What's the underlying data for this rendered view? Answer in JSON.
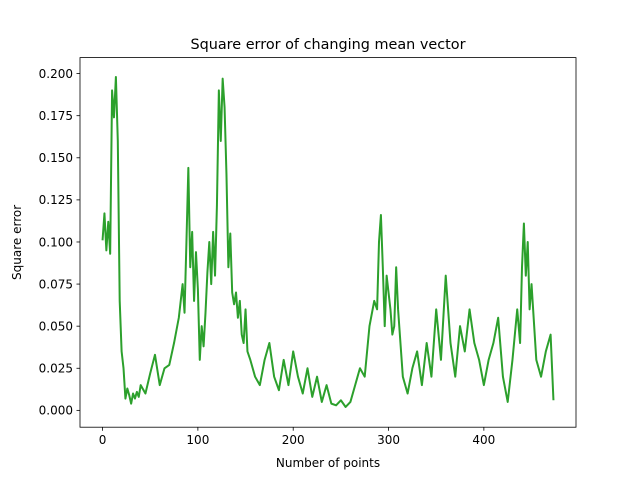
{
  "chart_data": {
    "type": "line",
    "title": "Square error of changing mean vector",
    "xlabel": "Number of points",
    "ylabel": "Square error",
    "xlim": [
      -23.65,
      496.65
    ],
    "ylim": [
      -0.01,
      0.2095
    ],
    "xticks": [
      0,
      100,
      200,
      300,
      400
    ],
    "yticks": [
      0.0,
      0.025,
      0.05,
      0.075,
      0.1,
      0.125,
      0.15,
      0.175,
      0.2
    ],
    "xtick_labels": [
      "0",
      "100",
      "200",
      "300",
      "400"
    ],
    "ytick_labels": [
      "0.000",
      "0.025",
      "0.050",
      "0.075",
      "0.100",
      "0.125",
      "0.150",
      "0.175",
      "0.200"
    ],
    "grid": false,
    "series": [
      {
        "color": "#2ca02c",
        "x": [
          0,
          2,
          4,
          6,
          8,
          10,
          12,
          14,
          16,
          18,
          20,
          22,
          24,
          26,
          28,
          30,
          32,
          34,
          36,
          38,
          40,
          45,
          50,
          55,
          60,
          65,
          70,
          75,
          80,
          84,
          86,
          88,
          90,
          92,
          94,
          96,
          98,
          100,
          102,
          104,
          106,
          108,
          110,
          112,
          114,
          116,
          118,
          120,
          122,
          124,
          126,
          128,
          130,
          132,
          134,
          136,
          138,
          140,
          142,
          144,
          146,
          148,
          150,
          152,
          155,
          160,
          165,
          170,
          175,
          180,
          185,
          190,
          195,
          200,
          205,
          210,
          215,
          220,
          225,
          230,
          235,
          240,
          245,
          250,
          255,
          260,
          265,
          270,
          275,
          280,
          285,
          288,
          290,
          292,
          294,
          296,
          298,
          300,
          302,
          304,
          306,
          308,
          310,
          315,
          320,
          325,
          330,
          335,
          340,
          345,
          350,
          355,
          360,
          365,
          370,
          375,
          380,
          385,
          390,
          395,
          400,
          405,
          410,
          415,
          420,
          425,
          430,
          435,
          438,
          440,
          442,
          444,
          446,
          448,
          450,
          455,
          460,
          465,
          470,
          473
        ],
        "values": [
          0.101,
          0.117,
          0.095,
          0.112,
          0.093,
          0.19,
          0.174,
          0.198,
          0.16,
          0.065,
          0.035,
          0.025,
          0.007,
          0.013,
          0.009,
          0.004,
          0.01,
          0.007,
          0.011,
          0.008,
          0.015,
          0.01,
          0.022,
          0.033,
          0.015,
          0.025,
          0.027,
          0.04,
          0.055,
          0.075,
          0.058,
          0.1,
          0.144,
          0.085,
          0.106,
          0.065,
          0.094,
          0.072,
          0.03,
          0.05,
          0.038,
          0.058,
          0.082,
          0.1,
          0.075,
          0.106,
          0.08,
          0.122,
          0.19,
          0.16,
          0.197,
          0.18,
          0.14,
          0.085,
          0.105,
          0.07,
          0.063,
          0.07,
          0.055,
          0.065,
          0.045,
          0.04,
          0.06,
          0.035,
          0.03,
          0.02,
          0.015,
          0.03,
          0.04,
          0.02,
          0.012,
          0.03,
          0.015,
          0.035,
          0.02,
          0.01,
          0.025,
          0.008,
          0.02,
          0.005,
          0.015,
          0.004,
          0.003,
          0.006,
          0.002,
          0.005,
          0.015,
          0.025,
          0.02,
          0.05,
          0.065,
          0.06,
          0.1,
          0.116,
          0.085,
          0.05,
          0.08,
          0.07,
          0.06,
          0.045,
          0.05,
          0.085,
          0.06,
          0.02,
          0.01,
          0.025,
          0.035,
          0.015,
          0.04,
          0.02,
          0.06,
          0.03,
          0.08,
          0.04,
          0.02,
          0.05,
          0.035,
          0.06,
          0.04,
          0.03,
          0.015,
          0.03,
          0.04,
          0.055,
          0.02,
          0.005,
          0.03,
          0.06,
          0.04,
          0.085,
          0.111,
          0.08,
          0.1,
          0.06,
          0.075,
          0.03,
          0.02,
          0.035,
          0.045,
          0.006
        ]
      }
    ]
  }
}
